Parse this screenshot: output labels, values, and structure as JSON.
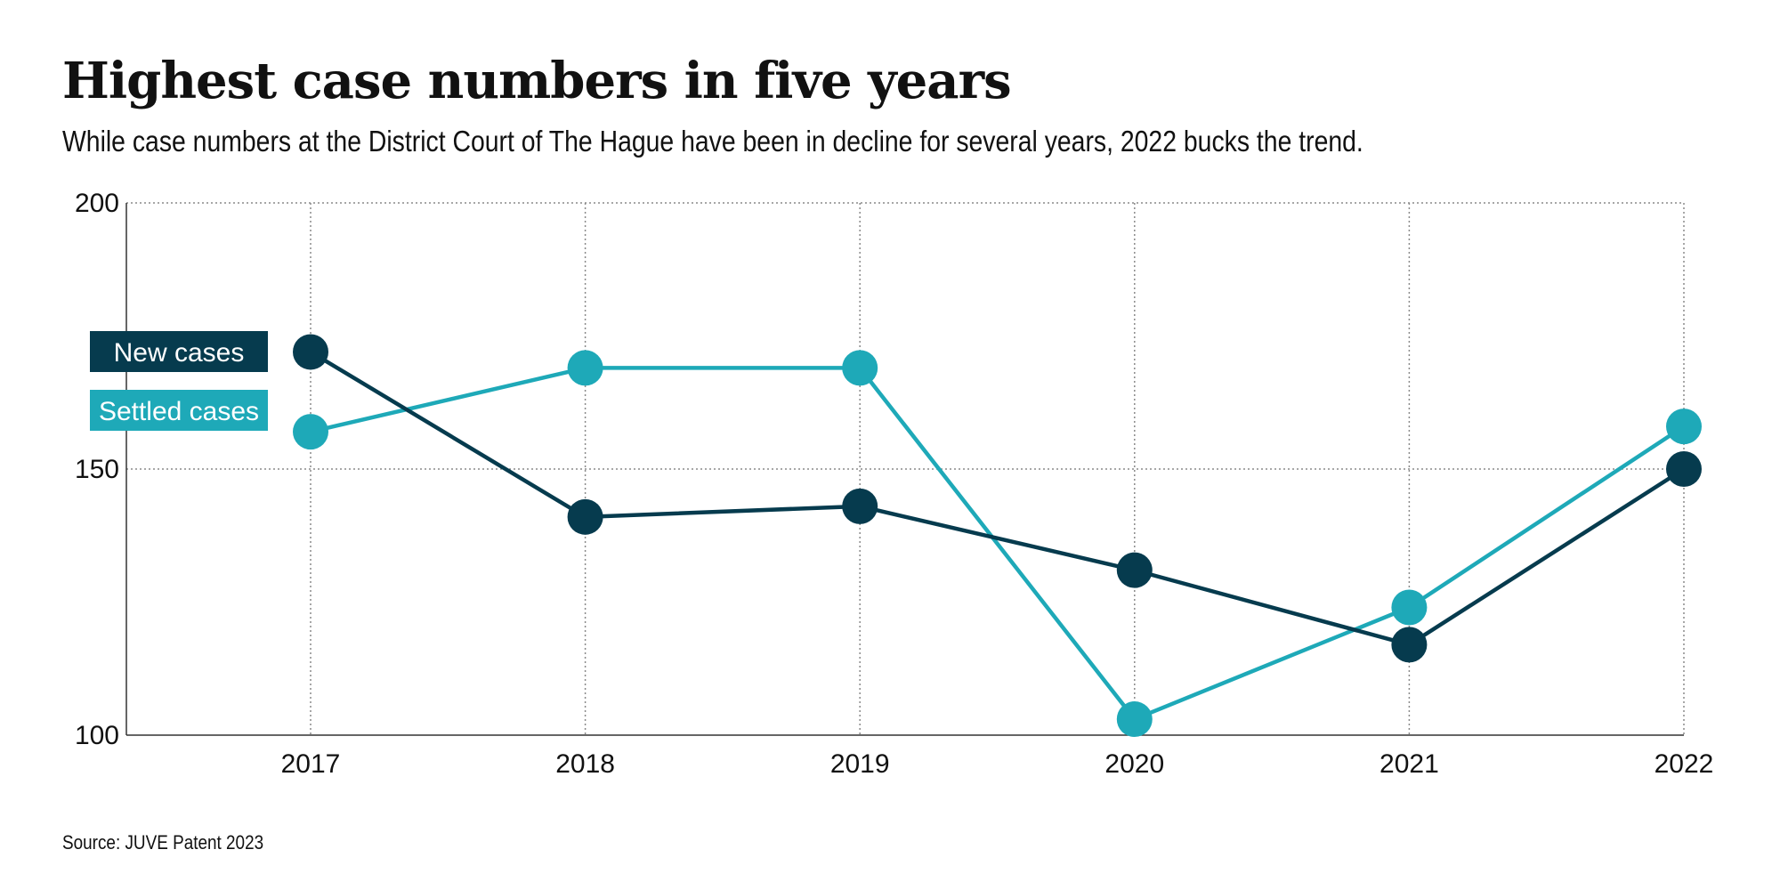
{
  "header": {
    "title": "Highest case numbers in five years",
    "subtitle": "While case numbers at the District Court of The Hague have been in decline for several years, 2022 bucks the trend."
  },
  "footer": {
    "source": "Source: JUVE Patent 2023"
  },
  "colors": {
    "new_cases": "#063b4e",
    "settled_cases": "#1ea9b8",
    "grid": "#8a8a8a",
    "axis": "#333333"
  },
  "chart_data": {
    "type": "line",
    "x": [
      "2017",
      "2018",
      "2019",
      "2020",
      "2021",
      "2022"
    ],
    "ylim": [
      100,
      200
    ],
    "yticks": [
      100,
      150,
      200
    ],
    "grid": true,
    "legend_position": "left",
    "series": [
      {
        "name": "New cases",
        "values": [
          172,
          141,
          143,
          131,
          117,
          150
        ],
        "color": "#063b4e"
      },
      {
        "name": "Settled cases",
        "values": [
          157,
          169,
          169,
          103,
          124,
          158
        ],
        "color": "#1ea9b8"
      }
    ]
  }
}
